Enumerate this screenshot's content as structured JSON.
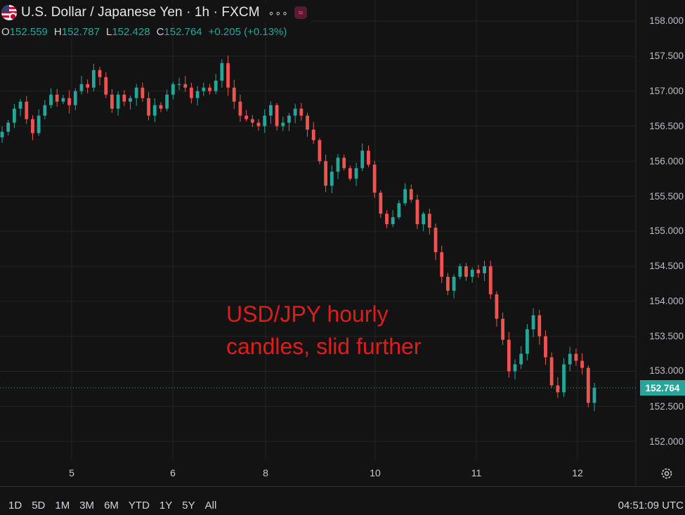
{
  "header": {
    "symbol_title": "U.S. Dollar / Japanese Yen · 1h · FXCM",
    "more_label": "∘∘∘",
    "badge_icon": "≈"
  },
  "ohlc": {
    "o_label": "O",
    "o_value": "152.559",
    "h_label": "H",
    "h_value": "152.787",
    "l_label": "L",
    "l_value": "152.428",
    "c_label": "C",
    "c_value": "152.764",
    "change": "+0.205 (+0.13%)"
  },
  "price_axis": {
    "labels": [
      "158.000",
      "157.500",
      "157.000",
      "156.500",
      "156.000",
      "155.500",
      "155.000",
      "154.500",
      "154.000",
      "153.500",
      "153.000",
      "152.500",
      "152.000"
    ],
    "last_price": "152.764"
  },
  "time_axis": {
    "labels": [
      "5",
      "6",
      "8",
      "10",
      "11",
      "12"
    ]
  },
  "annotation": "USD/JPY hourly\ncandles, slid further",
  "bottom_bar": {
    "ranges": [
      "1D",
      "5D",
      "1M",
      "3M",
      "6M",
      "YTD",
      "1Y",
      "5Y",
      "All"
    ],
    "clock": "04:51:09 UTC"
  },
  "colors": {
    "up": "#26a69a",
    "down": "#ef5350",
    "annotation": "#e21b1b",
    "background": "#131313"
  },
  "chart_data": {
    "type": "candlestick",
    "title": "U.S. Dollar / Japanese Yen · 1h · FXCM",
    "ylim": [
      151.5,
      158.3
    ],
    "x_ticks": [
      "5",
      "6",
      "8",
      "10",
      "11",
      "12"
    ],
    "last_price": 152.764,
    "closes": [
      156.42,
      156.55,
      156.75,
      156.85,
      156.6,
      156.4,
      156.65,
      156.8,
      156.95,
      156.85,
      156.9,
      156.8,
      157.0,
      157.1,
      157.05,
      157.3,
      157.2,
      156.95,
      156.75,
      156.95,
      156.85,
      156.9,
      157.05,
      156.9,
      156.65,
      156.8,
      156.75,
      156.95,
      157.1,
      157.1,
      157.05,
      156.9,
      157.0,
      157.05,
      157.0,
      157.15,
      157.4,
      157.05,
      156.85,
      156.65,
      156.6,
      156.55,
      156.5,
      156.65,
      156.8,
      156.5,
      156.55,
      156.65,
      156.75,
      156.65,
      156.45,
      156.3,
      156.0,
      155.65,
      155.85,
      156.05,
      155.9,
      155.75,
      155.9,
      156.15,
      155.95,
      155.55,
      155.25,
      155.1,
      155.2,
      155.4,
      155.6,
      155.45,
      155.1,
      155.25,
      155.05,
      154.7,
      154.35,
      154.15,
      154.35,
      154.5,
      154.35,
      154.45,
      154.4,
      154.5,
      154.1,
      153.75,
      153.45,
      153.0,
      153.1,
      153.25,
      153.6,
      153.8,
      153.5,
      153.2,
      152.8,
      152.7,
      153.1,
      153.25,
      153.15,
      153.05,
      152.55,
      152.764
    ]
  }
}
